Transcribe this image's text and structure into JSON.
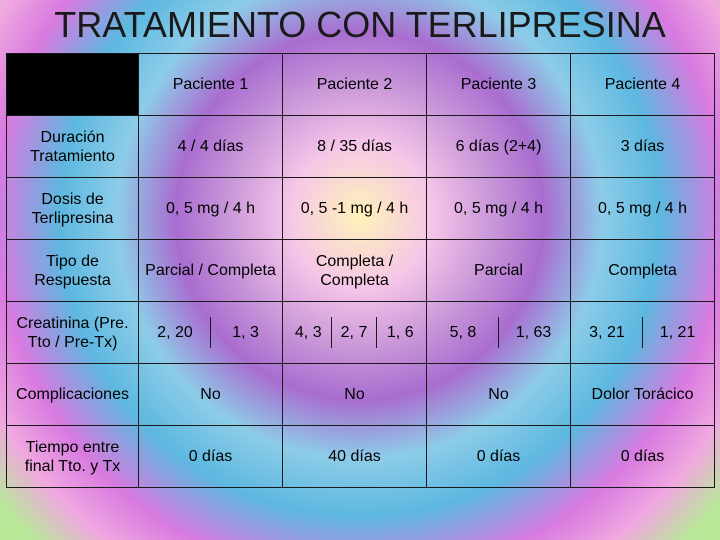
{
  "title": "TRATAMIENTO CON TERLIPRESINA",
  "headers": [
    "Paciente 1",
    "Paciente 2",
    "Paciente 3",
    "Paciente 4"
  ],
  "rows": {
    "duracion": {
      "label": "Duración Tratamiento",
      "p1": "4 / 4 días",
      "p2": "8 / 35 días",
      "p3": "6 días (2+4)",
      "p4": "3 días"
    },
    "dosis": {
      "label": "Dosis de Terlipresina",
      "p1": "0, 5 mg / 4 h",
      "p2": "0, 5 -1 mg / 4 h",
      "p3": "0, 5 mg / 4 h",
      "p4": "0, 5 mg / 4 h"
    },
    "tipo": {
      "label": "Tipo de Respuesta",
      "p1": "Parcial / Completa",
      "p2": "Completa / Completa",
      "p3": "Parcial",
      "p4": "Completa"
    },
    "creat": {
      "label": "Creatinina (Pre. Tto / Pre-Tx)",
      "p1a": "2, 20",
      "p1b": "1, 3",
      "p2a": "4, 3",
      "p2b": "2, 7",
      "p2c": "1, 6",
      "p3a": "5, 8",
      "p3b": "1, 63",
      "p4a": "3, 21",
      "p4b": "1, 21"
    },
    "comp": {
      "label": "Complicaciones",
      "p1": "No",
      "p2": "No",
      "p3": "No",
      "p4": "Dolor Torácico"
    },
    "tiempo": {
      "label": "Tiempo entre final Tto. y Tx",
      "p1": "0 días",
      "p2": "40 días",
      "p3": "0 días",
      "p4": "0 días"
    }
  }
}
